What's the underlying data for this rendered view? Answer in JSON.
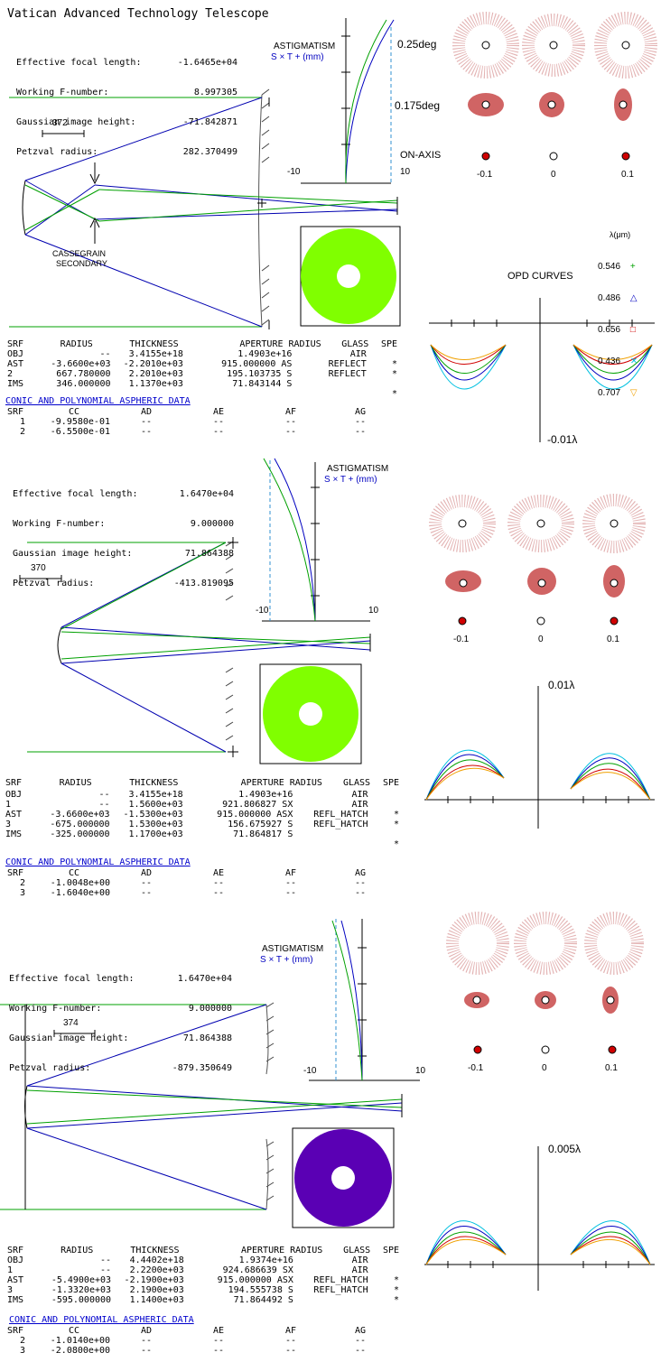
{
  "title": "Vatican Advanced Technology Telescope",
  "colors": {
    "blue_ray": "#0000b0",
    "green_ray": "#00a000",
    "pupil_green": "#80ff00",
    "pupil_purple": "#5a00b4",
    "spot_red": "#d00000",
    "opd_green": "#00a000",
    "opd_blue": "#0000c0",
    "opd_red": "#d00000",
    "opd_cyan": "#00c0e0",
    "opd_orange": "#f0a000"
  },
  "wavelength_legend": {
    "header": "λ(μm)",
    "items": [
      {
        "label": "0.546",
        "symbol": "+",
        "color": "#00a000"
      },
      {
        "label": "0.486",
        "symbol": "△",
        "color": "#0000c0"
      },
      {
        "label": "0.656",
        "symbol": "□",
        "color": "#d00000"
      },
      {
        "label": "0.436",
        "symbol": "✕",
        "color": "#00c0e0"
      },
      {
        "label": "0.707",
        "symbol": "▽",
        "color": "#f0a000"
      }
    ]
  },
  "opd_title": "OPD CURVES",
  "designs": [
    {
      "params": [
        {
          "label": "Effective focal length:",
          "value": "-1.6465e+04"
        },
        {
          "label": "Working F-number:",
          "value": "8.997305"
        },
        {
          "label": "Gaussian image height:",
          "value": "-71.842871"
        },
        {
          "label": "Petzval radius:",
          "value": "282.370499"
        }
      ],
      "scale": "372",
      "secondary_label_1": "CASSEGRAIN",
      "secondary_label_2": "SECONDARY",
      "astig_title": "ASTIGMATISM",
      "astig_legend": "S × T + (mm)",
      "axis_min": "-10",
      "axis_max": "10",
      "fields": [
        "0.25deg",
        "0.175deg",
        "ON-AXIS"
      ],
      "spot_labels": [
        "-0.1",
        "0",
        "0.1"
      ],
      "opd_scale": "-0.01λ",
      "surface_header": [
        "SRF",
        "RADIUS",
        "THICKNESS",
        "APERTURE RADIUS",
        "GLASS",
        "SPE"
      ],
      "surfaces": [
        [
          "OBJ",
          "--",
          "3.4155e+18",
          "1.4903e+16",
          "AIR",
          ""
        ],
        [
          "AST",
          "-3.6600e+03",
          "-2.2010e+03",
          "915.000000 AS",
          "REFLECT",
          "*"
        ],
        [
          "2",
          "667.780000",
          "2.2010e+03",
          "195.103735 S",
          "REFLECT",
          "*"
        ],
        [
          "IMS",
          "346.000000",
          "1.1370e+03",
          "71.843144 S",
          "",
          ""
        ],
        [
          "",
          "",
          "",
          "",
          "",
          "*"
        ]
      ],
      "conic_title": "CONIC AND POLYNOMIAL ASPHERIC DATA",
      "conic_header": [
        "SRF",
        "CC",
        "AD",
        "AE",
        "AF",
        "AG"
      ],
      "conic_rows": [
        [
          "1",
          "-9.9580e-01",
          "--",
          "--",
          "--",
          "--"
        ],
        [
          "2",
          "-6.5500e-01",
          "--",
          "--",
          "--",
          "--"
        ]
      ]
    },
    {
      "params": [
        {
          "label": "Effective focal length:",
          "value": "1.6470e+04"
        },
        {
          "label": "Working F-number:",
          "value": "9.000000"
        },
        {
          "label": "Gaussian image height:",
          "value": "71.864388"
        },
        {
          "label": "Petzval radius:",
          "value": "-413.819095"
        }
      ],
      "scale": "370",
      "astig_title": "ASTIGMATISM",
      "astig_legend": "S × T + (mm)",
      "axis_min": "-10",
      "axis_max": "10",
      "spot_labels": [
        "-0.1",
        "0",
        "0.1"
      ],
      "opd_scale": "0.01λ",
      "surface_header": [
        "SRF",
        "RADIUS",
        "THICKNESS",
        "APERTURE RADIUS",
        "GLASS",
        "SPE"
      ],
      "surfaces": [
        [
          "OBJ",
          "--",
          "3.4155e+18",
          "1.4903e+16",
          "AIR",
          ""
        ],
        [
          "1",
          "--",
          "1.5600e+03",
          "921.806827 SX",
          "AIR",
          ""
        ],
        [
          "AST",
          "-3.6600e+03",
          "-1.5300e+03",
          "915.000000 ASX",
          "REFL_HATCH",
          "*"
        ],
        [
          "3",
          "-675.000000",
          "1.5300e+03",
          "156.675927 S",
          "REFL_HATCH",
          "*"
        ],
        [
          "IMS",
          "-325.000000",
          "1.1700e+03",
          "71.864817 S",
          "",
          ""
        ],
        [
          "",
          "",
          "",
          "",
          "",
          "*"
        ]
      ],
      "conic_title": "CONIC AND POLYNOMIAL ASPHERIC DATA",
      "conic_header": [
        "SRF",
        "CC",
        "AD",
        "AE",
        "AF",
        "AG"
      ],
      "conic_rows": [
        [
          "2",
          "-1.0048e+00",
          "--",
          "--",
          "--",
          "--"
        ],
        [
          "3",
          "-1.6040e+00",
          "--",
          "--",
          "--",
          "--"
        ]
      ]
    },
    {
      "params": [
        {
          "label": "Effective focal length:",
          "value": "1.6470e+04"
        },
        {
          "label": "Working F-number:",
          "value": "9.000000"
        },
        {
          "label": "Gaussian image height:",
          "value": "71.864388"
        },
        {
          "label": "Petzval radius:",
          "value": "-879.350649"
        }
      ],
      "scale": "374",
      "astig_title": "ASTIGMATISM",
      "astig_legend": "S × T + (mm)",
      "axis_min": "-10",
      "axis_max": "10",
      "spot_labels": [
        "-0.1",
        "0",
        "0.1"
      ],
      "opd_scale": "0.005λ",
      "surface_header": [
        "SRF",
        "RADIUS",
        "THICKNESS",
        "APERTURE RADIUS",
        "GLASS",
        "SPE"
      ],
      "surfaces": [
        [
          "OBJ",
          "--",
          "4.4402e+18",
          "1.9374e+16",
          "AIR",
          ""
        ],
        [
          "1",
          "--",
          "2.2200e+03",
          "924.686639 SX",
          "AIR",
          ""
        ],
        [
          "AST",
          "-5.4900e+03",
          "-2.1900e+03",
          "915.000000 ASX",
          "REFL_HATCH",
          "*"
        ],
        [
          "3",
          "-1.3320e+03",
          "2.1900e+03",
          "194.555738 S",
          "REFL_HATCH",
          "*"
        ],
        [
          "IMS",
          "-595.000000",
          "1.1400e+03",
          "71.864492 S",
          "",
          "*"
        ]
      ],
      "conic_title": "CONIC AND POLYNOMIAL ASPHERIC DATA",
      "conic_header": [
        "SRF",
        "CC",
        "AD",
        "AE",
        "AF",
        "AG"
      ],
      "conic_rows": [
        [
          "2",
          "-1.0140e+00",
          "--",
          "--",
          "--",
          "--"
        ],
        [
          "3",
          "-2.0800e+00",
          "--",
          "--",
          "--",
          "--"
        ]
      ]
    }
  ]
}
